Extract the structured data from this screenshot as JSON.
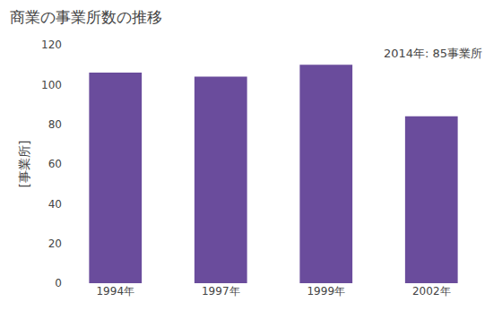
{
  "chart_data": {
    "type": "bar",
    "title": "商業の事業所数の推移",
    "ylabel": "[事業所]",
    "annotation": "2014年: 85事業所",
    "categories": [
      "1994年",
      "1997年",
      "1999年",
      "2002年"
    ],
    "values": [
      106,
      104,
      110,
      84
    ],
    "color": "#6a4c9c",
    "ylim": [
      0,
      120
    ],
    "yticks": [
      0,
      20,
      40,
      60,
      80,
      100,
      120
    ],
    "grid": false
  }
}
